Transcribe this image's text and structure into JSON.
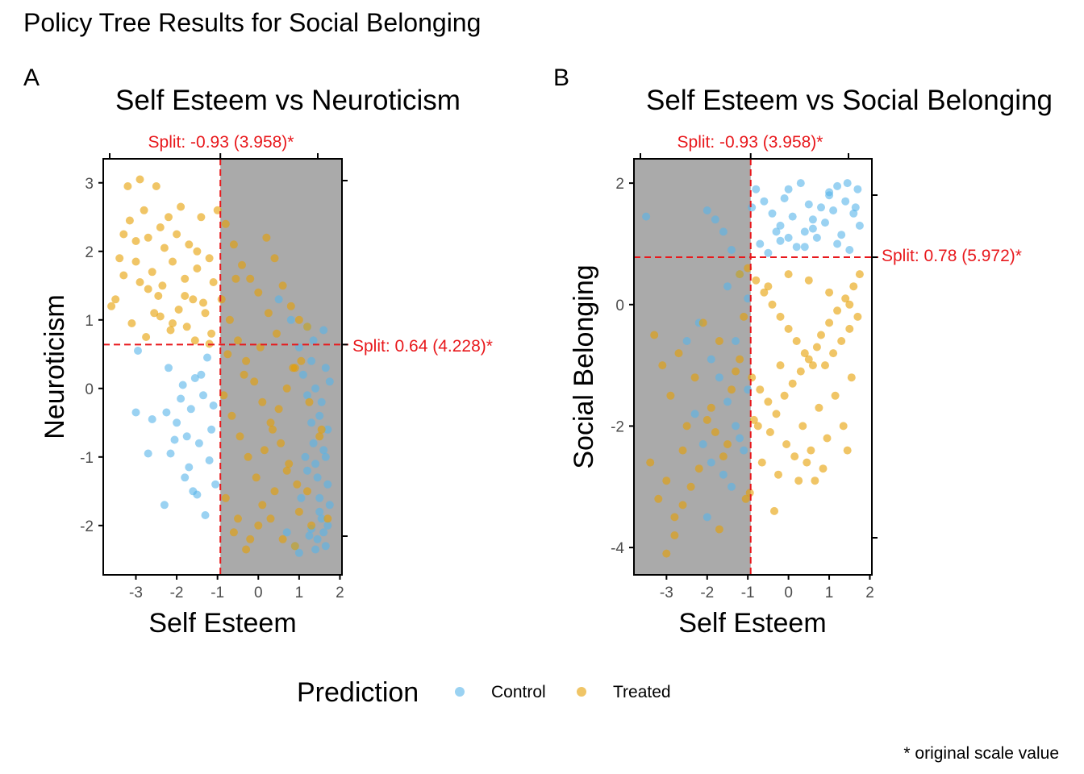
{
  "figure": {
    "title": "Policy Tree Results for Social Belonging",
    "caption": "* original scale value",
    "legend": {
      "title": "Prediction",
      "items": [
        {
          "label": "Control",
          "color": "#56B4E9"
        },
        {
          "label": "Treated",
          "color": "#E69F00"
        }
      ]
    }
  },
  "panels": [
    {
      "tag": "A",
      "title": "Self Esteem vs Neuroticism",
      "xlabel": "Self Esteem",
      "ylabel": "Neuroticism",
      "top_split_label": "Split: -0.93 (3.958)*",
      "right_split_label": "Split: 0.64 (4.228)*"
    },
    {
      "tag": "B",
      "title": "Self Esteem vs Social Belonging",
      "xlabel": "Self Esteem",
      "ylabel": "Social Belonging",
      "top_split_label": "Split: -0.93 (3.958)*",
      "right_split_label": "Split: 0.78 (5.972)*"
    }
  ],
  "chart_data": [
    {
      "type": "scatter",
      "title": "Self Esteem vs Neuroticism",
      "xlabel": "Self Esteem",
      "ylabel": "Neuroticism",
      "xlim": [
        -3.8,
        2.05
      ],
      "ylim": [
        -2.72,
        3.35
      ],
      "x_ticks": [
        -3,
        -2,
        -1,
        0,
        1,
        2
      ],
      "y_ticks": [
        -2,
        -1,
        0,
        1,
        2,
        3
      ],
      "grid": false,
      "legend_position": "bottom",
      "vertical_split": {
        "value": -0.93,
        "label": "Split: -0.93 (3.958)*"
      },
      "horizontal_split": {
        "value": 0.64,
        "label": "Split: 0.64 (4.228)*"
      },
      "shaded_region": {
        "x_from": -0.93,
        "x_to": 2.05
      },
      "series": [
        {
          "name": "Control",
          "color": "#56B4E9",
          "x": [
            -3.0,
            -2.95,
            -2.7,
            -2.6,
            -2.3,
            -2.25,
            -2.2,
            -2.15,
            -2.0,
            -1.9,
            -1.85,
            -1.75,
            -1.7,
            -1.6,
            -1.5,
            -1.45,
            -1.4,
            -1.35,
            -1.3,
            -1.2,
            -1.15,
            -1.1,
            -1.05,
            -1.25,
            -1.55,
            -2.05,
            -1.8,
            -1.65,
            0.5,
            0.8,
            1.0,
            1.1,
            1.2,
            1.3,
            1.35,
            1.4,
            1.45,
            1.5,
            1.55,
            1.6,
            1.65,
            1.7,
            1.75,
            1.2,
            1.3,
            1.4,
            1.5,
            1.6,
            1.7,
            1.0,
            0.9,
            1.25,
            1.45,
            1.55,
            1.65,
            1.35,
            1.15,
            1.05,
            0.7,
            1.6,
            1.7,
            1.5,
            1.4,
            1.3,
            1.2,
            1.75,
            1.65
          ],
          "y": [
            -0.35,
            0.55,
            -0.95,
            -0.45,
            -1.7,
            -0.35,
            0.3,
            -0.95,
            -0.5,
            -0.15,
            0.05,
            -0.7,
            -1.15,
            -1.5,
            -1.55,
            -0.8,
            0.2,
            -0.1,
            -1.85,
            -1.05,
            -0.6,
            -0.25,
            -1.4,
            0.45,
            0.15,
            -0.75,
            -1.3,
            -0.3,
            1.3,
            1.0,
            0.6,
            0.2,
            -0.1,
            -0.5,
            -0.8,
            -1.1,
            -1.3,
            -1.6,
            -1.9,
            -2.1,
            -2.3,
            -2.0,
            -1.7,
            0.9,
            0.4,
            0.0,
            -0.4,
            -0.9,
            -1.4,
            -2.4,
            -2.3,
            -2.15,
            -2.2,
            -0.2,
            0.3,
            0.7,
            -1.0,
            -1.6,
            -2.1,
            0.85,
            -0.6,
            -1.8,
            -2.35,
            -2.05,
            -1.2,
            0.1,
            -1.0
          ]
        },
        {
          "name": "Treated",
          "color": "#E69F00",
          "x": [
            -3.2,
            -3.15,
            -3.0,
            -2.9,
            -2.8,
            -2.7,
            -2.6,
            -2.5,
            -2.45,
            -2.4,
            -2.3,
            -2.2,
            -2.1,
            -2.0,
            -1.9,
            -1.8,
            -1.7,
            -1.6,
            -1.5,
            -1.4,
            -1.3,
            -1.2,
            -1.1,
            -1.0,
            -3.5,
            -3.4,
            -3.3,
            -3.1,
            -2.9,
            -2.75,
            -2.55,
            -2.35,
            -2.15,
            -1.95,
            -1.75,
            -1.55,
            -1.35,
            -1.15,
            -3.6,
            -3.3,
            -3.0,
            -2.7,
            -2.4,
            -2.1,
            -1.8,
            -1.5,
            -1.2,
            -0.8,
            -0.6,
            -0.4,
            -0.2,
            0.0,
            0.2,
            0.4,
            0.6,
            0.8,
            1.0,
            1.2,
            -0.9,
            -0.7,
            -0.5,
            -0.3,
            -0.1,
            0.1,
            0.3,
            0.5,
            0.7,
            0.9,
            -0.85,
            -0.65,
            -0.45,
            -0.25,
            -0.05,
            0.15,
            0.35,
            0.55,
            0.75,
            0.95,
            -0.8,
            -0.5,
            -0.2,
            0.1,
            0.4,
            0.7,
            1.0,
            1.3,
            -0.6,
            -0.3,
            0.0,
            0.3,
            0.6,
            0.9,
            1.2,
            1.5,
            -0.75,
            -0.35,
            0.05,
            0.45,
            0.85,
            1.25,
            -0.55,
            0.25,
            1.05,
            1.55,
            1.7
          ],
          "y": [
            2.95,
            2.45,
            2.15,
            3.05,
            2.6,
            2.2,
            1.7,
            2.95,
            1.35,
            2.35,
            2.05,
            2.5,
            1.85,
            2.25,
            2.65,
            1.6,
            2.1,
            1.3,
            1.75,
            2.5,
            1.1,
            1.9,
            1.55,
            2.6,
            1.3,
            1.9,
            2.25,
            0.95,
            1.55,
            0.75,
            1.1,
            1.5,
            0.85,
            1.15,
            0.9,
            0.7,
            1.25,
            0.8,
            1.2,
            1.65,
            1.85,
            1.45,
            1.05,
            0.95,
            1.35,
            2.0,
            0.65,
            2.4,
            2.1,
            1.8,
            1.6,
            1.4,
            2.2,
            1.9,
            1.5,
            1.2,
            1.0,
            0.9,
            1.3,
            1.0,
            0.7,
            0.4,
            0.1,
            -0.2,
            -0.5,
            -0.3,
            0.0,
            0.3,
            -0.1,
            -0.4,
            -0.7,
            -1.0,
            -1.3,
            -0.9,
            -0.6,
            -0.8,
            -1.1,
            -1.4,
            -1.6,
            -1.9,
            -2.2,
            -1.7,
            -1.5,
            -1.2,
            -1.8,
            -2.0,
            -2.1,
            -2.35,
            -2.0,
            -1.9,
            -2.2,
            -2.3,
            -1.5,
            -0.7,
            0.5,
            0.2,
            0.6,
            0.8,
            0.3,
            -0.2,
            1.6,
            1.1,
            0.4,
            -0.6,
            -1.9
          ]
        }
      ]
    },
    {
      "type": "scatter",
      "title": "Self Esteem vs Social Belonging",
      "xlabel": "Self Esteem",
      "ylabel": "Social Belonging",
      "xlim": [
        -3.8,
        2.05
      ],
      "ylim": [
        -4.45,
        2.4
      ],
      "x_ticks": [
        -3,
        -2,
        -1,
        0,
        1,
        2
      ],
      "y_ticks": [
        -4,
        -2,
        0,
        2
      ],
      "grid": false,
      "legend_position": "bottom",
      "vertical_split": {
        "value": -0.93,
        "label": "Split: -0.93 (3.958)*"
      },
      "horizontal_split": {
        "value": 0.78,
        "label": "Split: 0.78 (5.972)*"
      },
      "shaded_region": {
        "x_from": -3.8,
        "x_to": -0.93
      },
      "series": [
        {
          "name": "Control",
          "color": "#56B4E9",
          "x": [
            -3.5,
            -2.0,
            -1.8,
            -1.6,
            -1.4,
            -1.2,
            -1.0,
            -2.5,
            -2.2,
            -1.9,
            -1.7,
            -1.5,
            -1.3,
            -1.1,
            -2.3,
            -2.1,
            -1.9,
            -1.6,
            -1.4,
            -1.2,
            -1.0,
            -2.0,
            -1.5,
            -1.3,
            -0.8,
            -0.6,
            -0.4,
            -0.2,
            0.0,
            0.2,
            0.4,
            0.6,
            0.8,
            1.0,
            1.2,
            1.4,
            1.6,
            1.75,
            -0.7,
            -0.3,
            0.1,
            0.5,
            0.9,
            1.3,
            1.7,
            -0.5,
            -0.1,
            0.3,
            0.7,
            1.1,
            1.5,
            -0.9,
            0.0,
            0.6,
            1.2,
            1.65,
            -0.2,
            0.4,
            1.0,
            1.45
          ],
          "y": [
            1.45,
            1.55,
            1.4,
            1.2,
            0.9,
            0.5,
            0.1,
            -0.6,
            -0.3,
            -0.9,
            -1.2,
            -1.6,
            -2.0,
            -2.4,
            -1.8,
            -2.3,
            -2.6,
            -2.8,
            -3.0,
            -2.2,
            -1.4,
            -3.5,
            0.3,
            -0.6,
            1.9,
            1.7,
            1.5,
            1.3,
            1.1,
            0.95,
            1.2,
            1.4,
            1.6,
            1.8,
            1.95,
            1.7,
            1.5,
            1.3,
            1.0,
            1.2,
            1.45,
            1.65,
            1.35,
            1.15,
            1.9,
            0.85,
            1.75,
            2.0,
            1.1,
            1.55,
            0.9,
            1.6,
            1.9,
            1.25,
            1.0,
            1.6,
            1.05,
            0.95,
            1.85,
            2.0
          ]
        },
        {
          "name": "Treated",
          "color": "#E69F00",
          "x": [
            -3.3,
            -3.1,
            -2.9,
            -2.7,
            -2.5,
            -2.3,
            -2.1,
            -1.9,
            -1.7,
            -1.5,
            -1.3,
            -1.1,
            -3.4,
            -3.2,
            -3.0,
            -2.8,
            -2.6,
            -2.4,
            -2.2,
            -2.0,
            -1.8,
            -1.6,
            -1.4,
            -1.2,
            -3.0,
            -2.8,
            -2.6,
            -1.7,
            -1.2,
            -1.0,
            -0.8,
            -0.6,
            -0.4,
            -0.2,
            0.0,
            0.2,
            0.4,
            0.6,
            0.8,
            1.0,
            1.2,
            1.4,
            1.6,
            1.75,
            -0.9,
            -0.7,
            -0.5,
            -0.3,
            -0.1,
            0.1,
            0.3,
            0.5,
            0.7,
            0.9,
            1.1,
            1.3,
            1.5,
            1.7,
            -0.85,
            -0.45,
            -0.05,
            0.35,
            0.75,
            1.15,
            1.55,
            -0.65,
            -0.25,
            0.15,
            0.55,
            0.95,
            1.35,
            -0.95,
            -0.35,
            0.25,
            0.85,
            1.45,
            -0.5,
            0.0,
            0.5,
            1.0,
            1.5,
            -0.75,
            0.65,
            -1.05,
            -0.2,
            0.45
          ],
          "y": [
            -0.5,
            -1.0,
            -1.5,
            -0.8,
            -2.0,
            -1.2,
            -0.3,
            -1.7,
            -0.6,
            -2.3,
            -1.1,
            -0.2,
            -2.6,
            -3.2,
            -2.9,
            -3.5,
            -2.4,
            -3.0,
            -2.7,
            -1.9,
            -2.1,
            -2.5,
            -1.4,
            -0.9,
            -4.1,
            -3.8,
            -3.3,
            -3.7,
            0.5,
            0.6,
            0.4,
            0.2,
            0.0,
            -0.2,
            -0.4,
            -0.6,
            -0.8,
            -1.0,
            -0.5,
            -0.3,
            -0.1,
            0.1,
            0.3,
            0.5,
            -1.2,
            -1.4,
            -1.6,
            -1.8,
            -1.5,
            -1.3,
            -1.1,
            -0.9,
            -0.7,
            -1.0,
            -0.8,
            -0.6,
            -0.4,
            -0.2,
            -1.9,
            -2.1,
            -2.3,
            -2.0,
            -1.7,
            -1.5,
            -1.2,
            -2.6,
            -2.8,
            -2.5,
            -2.4,
            -2.2,
            -2.0,
            -3.1,
            -3.4,
            -2.9,
            -2.7,
            -2.4,
            0.3,
            0.5,
            0.4,
            0.2,
            0.0,
            -2.0,
            -2.9,
            -3.2,
            -1.0,
            -2.6
          ]
        }
      ]
    }
  ]
}
